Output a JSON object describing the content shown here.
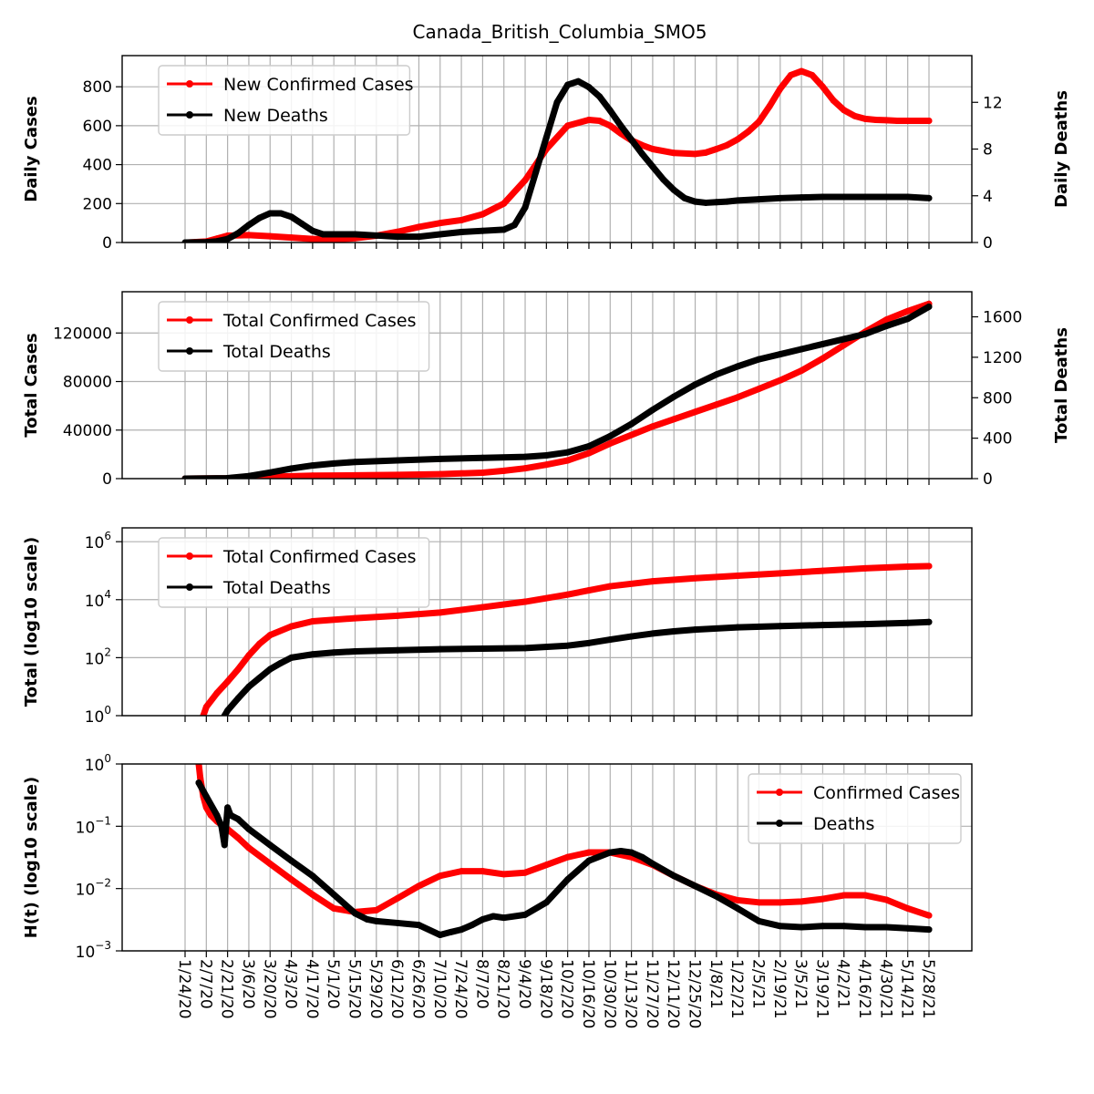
{
  "title": "Canada_British_Columbia_SMO5",
  "x_tick_labels": [
    "1/24/20",
    "2/7/20",
    "2/21/20",
    "3/6/20",
    "3/20/20",
    "4/3/20",
    "4/17/20",
    "5/1/20",
    "5/15/20",
    "5/29/20",
    "6/12/20",
    "6/26/20",
    "7/10/20",
    "7/24/20",
    "8/7/20",
    "8/21/20",
    "9/4/20",
    "9/18/20",
    "10/2/20",
    "10/16/20",
    "10/30/20",
    "11/13/20",
    "11/27/20",
    "12/11/20",
    "12/25/20",
    "1/8/21",
    "1/22/21",
    "2/5/21",
    "2/19/21",
    "3/5/21",
    "3/19/21",
    "4/2/21",
    "4/16/21",
    "4/30/21",
    "5/14/21",
    "5/28/21"
  ],
  "colors": {
    "cases": "#ff0000",
    "deaths": "#000000",
    "grid": "#b0b0b0"
  },
  "chart_data": [
    {
      "type": "line",
      "panel": "daily",
      "ylabel": "Daily Cases",
      "y2label": "Daily Deaths",
      "ylim": [
        0,
        960
      ],
      "y2lim": [
        0,
        16
      ],
      "yticks": [
        "0",
        "200",
        "400",
        "600",
        "800"
      ],
      "y2ticks": [
        "0",
        "4",
        "8",
        "12"
      ],
      "legend": "upper-left",
      "series": [
        {
          "name": "New Confirmed Cases",
          "axis": "left",
          "color": "#ff0000",
          "x": [
            2,
            14,
            21,
            28,
            42,
            56,
            70,
            84,
            98,
            112,
            126,
            140,
            154,
            168,
            182,
            196,
            210,
            224,
            238,
            252,
            266,
            273,
            280,
            287,
            294,
            301,
            308,
            322,
            336,
            343,
            350,
            357,
            364,
            371,
            378,
            385,
            392,
            399,
            406,
            413,
            420,
            427,
            434,
            441,
            448,
            455,
            462,
            469,
            476,
            486,
            490
          ],
          "y": [
            0,
            5,
            20,
            35,
            38,
            32,
            25,
            18,
            15,
            22,
            35,
            55,
            80,
            100,
            115,
            145,
            200,
            320,
            480,
            600,
            630,
            625,
            600,
            560,
            525,
            500,
            480,
            460,
            455,
            462,
            480,
            500,
            530,
            570,
            620,
            700,
            790,
            860,
            880,
            860,
            800,
            730,
            680,
            650,
            635,
            630,
            628,
            625,
            625,
            625,
            625
          ]
        },
        {
          "name": "New Deaths",
          "axis": "right",
          "color": "#000000",
          "x": [
            0,
            14,
            21,
            28,
            35,
            42,
            49,
            56,
            63,
            70,
            77,
            84,
            91,
            98,
            112,
            126,
            140,
            154,
            168,
            182,
            196,
            210,
            217,
            224,
            231,
            238,
            245,
            252,
            259,
            266,
            273,
            280,
            287,
            294,
            301,
            308,
            315,
            322,
            329,
            336,
            343,
            350,
            357,
            364,
            378,
            392,
            406,
            420,
            434,
            448,
            462,
            476,
            490
          ],
          "y": [
            0,
            0.03,
            0.1,
            0.3,
            0.8,
            1.5,
            2.1,
            2.5,
            2.5,
            2.2,
            1.6,
            1.0,
            0.7,
            0.7,
            0.7,
            0.6,
            0.5,
            0.5,
            0.7,
            0.9,
            1.0,
            1.1,
            1.5,
            3.0,
            6.0,
            9.0,
            12.0,
            13.5,
            13.8,
            13.3,
            12.5,
            11.3,
            10.0,
            8.8,
            7.6,
            6.5,
            5.4,
            4.5,
            3.8,
            3.5,
            3.4,
            3.45,
            3.5,
            3.6,
            3.7,
            3.8,
            3.85,
            3.9,
            3.9,
            3.9,
            3.9,
            3.9,
            3.8
          ]
        }
      ]
    },
    {
      "type": "line",
      "panel": "total",
      "ylabel": "Total Cases",
      "y2label": "Total Deaths",
      "ylim": [
        0,
        154000
      ],
      "y2lim": [
        0,
        1848
      ],
      "yticks": [
        "0",
        "40000",
        "80000",
        "120000"
      ],
      "y2ticks": [
        "0",
        "400",
        "800",
        "1200",
        "1600"
      ],
      "legend": "upper-left",
      "series": [
        {
          "name": "Total Confirmed Cases",
          "axis": "left",
          "color": "#ff0000",
          "x": [
            0,
            28,
            56,
            84,
            112,
            140,
            168,
            196,
            210,
            224,
            238,
            252,
            266,
            280,
            294,
            308,
            322,
            336,
            350,
            364,
            378,
            392,
            406,
            420,
            434,
            448,
            462,
            476,
            490
          ],
          "y": [
            0,
            300,
            1500,
            2400,
            2700,
            3100,
            3700,
            4900,
            6500,
            8500,
            11500,
            15000,
            21000,
            29000,
            36000,
            43000,
            49000,
            55000,
            61000,
            67000,
            74000,
            81000,
            89000,
            99000,
            110000,
            121000,
            131000,
            138000,
            144000
          ]
        },
        {
          "name": "Total Deaths",
          "axis": "right",
          "color": "#000000",
          "x": [
            0,
            28,
            42,
            56,
            70,
            84,
            98,
            112,
            140,
            168,
            196,
            224,
            238,
            252,
            266,
            280,
            294,
            308,
            322,
            336,
            350,
            364,
            378,
            392,
            406,
            420,
            434,
            448,
            462,
            476,
            490
          ],
          "y": [
            0,
            5,
            25,
            60,
            100,
            130,
            150,
            165,
            180,
            195,
            205,
            215,
            230,
            260,
            320,
            420,
            540,
            680,
            810,
            930,
            1030,
            1110,
            1180,
            1230,
            1280,
            1330,
            1380,
            1430,
            1510,
            1580,
            1700
          ]
        }
      ]
    },
    {
      "type": "line",
      "panel": "log_total",
      "ylabel": "Total (log10 scale)",
      "yscale": "log10",
      "ylim": [
        1,
        3000000
      ],
      "yticks": [
        {
          "mantissa": "10",
          "exponent": "0"
        },
        {
          "mantissa": "10",
          "exponent": "2"
        },
        {
          "mantissa": "10",
          "exponent": "4"
        },
        {
          "mantissa": "10",
          "exponent": "6"
        }
      ],
      "legend": "upper-left",
      "series": [
        {
          "name": "Total Confirmed Cases",
          "color": "#ff0000",
          "x": [
            12,
            14,
            21,
            28,
            35,
            42,
            49,
            56,
            70,
            84,
            112,
            140,
            168,
            196,
            224,
            252,
            266,
            280,
            308,
            336,
            364,
            392,
            420,
            448,
            476,
            490
          ],
          "y": [
            1,
            2,
            6,
            15,
            40,
            120,
            300,
            600,
            1200,
            1800,
            2300,
            2800,
            3600,
            5500,
            8500,
            15000,
            21000,
            29000,
            43000,
            55000,
            67000,
            81000,
            99000,
            121000,
            138000,
            144000
          ]
        },
        {
          "name": "Total Deaths",
          "color": "#000000",
          "x": [
            26,
            28,
            35,
            42,
            49,
            56,
            63,
            70,
            84,
            98,
            112,
            140,
            168,
            196,
            224,
            252,
            266,
            280,
            294,
            308,
            322,
            336,
            364,
            392,
            420,
            448,
            476,
            490
          ],
          "y": [
            1,
            1.5,
            4,
            10,
            20,
            40,
            65,
            100,
            130,
            150,
            165,
            180,
            195,
            205,
            215,
            260,
            320,
            420,
            540,
            680,
            810,
            930,
            1110,
            1230,
            1330,
            1430,
            1580,
            1700
          ]
        }
      ]
    },
    {
      "type": "line",
      "panel": "hazard",
      "ylabel": "H(t) (log10 scale)",
      "yscale": "log10",
      "ylim": [
        0.001,
        1
      ],
      "yticks": [
        {
          "mantissa": "10",
          "exponent": "−3"
        },
        {
          "mantissa": "10",
          "exponent": "−2"
        },
        {
          "mantissa": "10",
          "exponent": "−1"
        },
        {
          "mantissa": "10",
          "exponent": "0"
        }
      ],
      "legend": "upper-right",
      "series": [
        {
          "name": "Confirmed Cases",
          "color": "#ff0000",
          "x": [
            9,
            10,
            12,
            14,
            17,
            21,
            28,
            35,
            42,
            56,
            70,
            84,
            98,
            112,
            126,
            140,
            154,
            168,
            182,
            196,
            210,
            224,
            238,
            252,
            266,
            280,
            294,
            308,
            322,
            336,
            350,
            364,
            378,
            392,
            406,
            420,
            434,
            448,
            462,
            476,
            490
          ],
          "y": [
            1,
            0.6,
            0.3,
            0.2,
            0.15,
            0.12,
            0.09,
            0.065,
            0.045,
            0.025,
            0.014,
            0.008,
            0.0048,
            0.0042,
            0.0045,
            0.007,
            0.011,
            0.016,
            0.019,
            0.019,
            0.017,
            0.018,
            0.024,
            0.032,
            0.038,
            0.038,
            0.032,
            0.024,
            0.016,
            0.011,
            0.008,
            0.0065,
            0.006,
            0.006,
            0.0062,
            0.0068,
            0.0078,
            0.0078,
            0.0066,
            0.0048,
            0.0037
          ]
        },
        {
          "name": "Deaths",
          "color": "#000000",
          "x": [
            9,
            14,
            21,
            24,
            26,
            28,
            30,
            35,
            42,
            56,
            70,
            84,
            98,
            112,
            120,
            126,
            140,
            154,
            168,
            175,
            182,
            189,
            196,
            203,
            210,
            224,
            238,
            252,
            266,
            280,
            287,
            294,
            301,
            308,
            322,
            336,
            350,
            364,
            378,
            392,
            406,
            420,
            434,
            448,
            462,
            476,
            490
          ],
          "y": [
            0.5,
            0.3,
            0.15,
            0.1,
            0.05,
            0.2,
            0.15,
            0.13,
            0.09,
            0.05,
            0.028,
            0.016,
            0.008,
            0.004,
            0.0032,
            0.003,
            0.0028,
            0.0026,
            0.0018,
            0.002,
            0.0022,
            0.0026,
            0.0032,
            0.0036,
            0.0034,
            0.0038,
            0.006,
            0.014,
            0.028,
            0.038,
            0.04,
            0.038,
            0.032,
            0.025,
            0.016,
            0.011,
            0.0075,
            0.0048,
            0.003,
            0.0025,
            0.0024,
            0.0025,
            0.0025,
            0.0024,
            0.0024,
            0.0023,
            0.0022
          ]
        }
      ]
    }
  ]
}
